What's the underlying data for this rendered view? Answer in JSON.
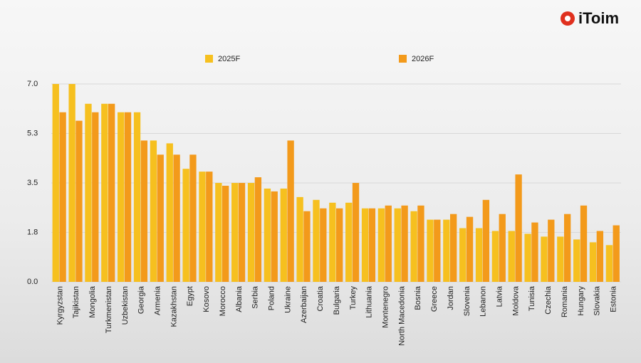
{
  "brand": "iToim",
  "chart_data": {
    "type": "bar",
    "categories": [
      "Kyrgyzstan",
      "Tajikistan",
      "Mongolia",
      "Turkmenistan",
      "Uzbekistan",
      "Georgia",
      "Armenia",
      "Kazakhstan",
      "Egypt",
      "Kosovo",
      "Morocco",
      "Albania",
      "Serbia",
      "Poland",
      "Ukraine",
      "Azerbaijan",
      "Croatia",
      "Bulgaria",
      "Turkey",
      "Lithuania",
      "Montenegro",
      "North Macedonia",
      "Bosnia",
      "Greece",
      "Jordan",
      "Slovenia",
      "Lebanon",
      "Latvia",
      "Moldova",
      "Tunisia",
      "Czechia",
      "Romania",
      "Hungary",
      "Slovakia",
      "Estonia"
    ],
    "series": [
      {
        "name": "2025F",
        "color": "#f6c01f",
        "values": [
          7.0,
          7.0,
          6.3,
          6.3,
          6.0,
          6.0,
          5.0,
          4.9,
          4.0,
          3.9,
          3.5,
          3.5,
          3.5,
          3.3,
          3.3,
          3.0,
          2.9,
          2.8,
          2.8,
          2.6,
          2.6,
          2.6,
          2.5,
          2.2,
          2.2,
          1.9,
          1.9,
          1.8,
          1.8,
          1.7,
          1.6,
          1.6,
          1.5,
          1.4,
          1.3
        ]
      },
      {
        "name": "2026F",
        "color": "#f39a1b",
        "values": [
          6.0,
          5.7,
          6.0,
          6.3,
          6.0,
          5.0,
          4.5,
          4.5,
          4.5,
          3.9,
          3.4,
          3.5,
          3.7,
          3.2,
          5.0,
          2.5,
          2.6,
          2.6,
          3.5,
          2.6,
          2.7,
          2.7,
          2.7,
          2.2,
          2.4,
          2.3,
          2.9,
          2.4,
          3.8,
          2.1,
          2.2,
          2.4,
          2.7,
          1.8,
          2.0
        ]
      }
    ],
    "ylim": [
      0,
      7
    ],
    "yticks": [
      {
        "value": 0,
        "label": "0.0"
      },
      {
        "value": 1.75,
        "label": "1.8"
      },
      3.5,
      {
        "value": 5.25,
        "label": "5.3"
      },
      {
        "value": 7,
        "label": "7.0"
      }
    ],
    "grid": true
  }
}
